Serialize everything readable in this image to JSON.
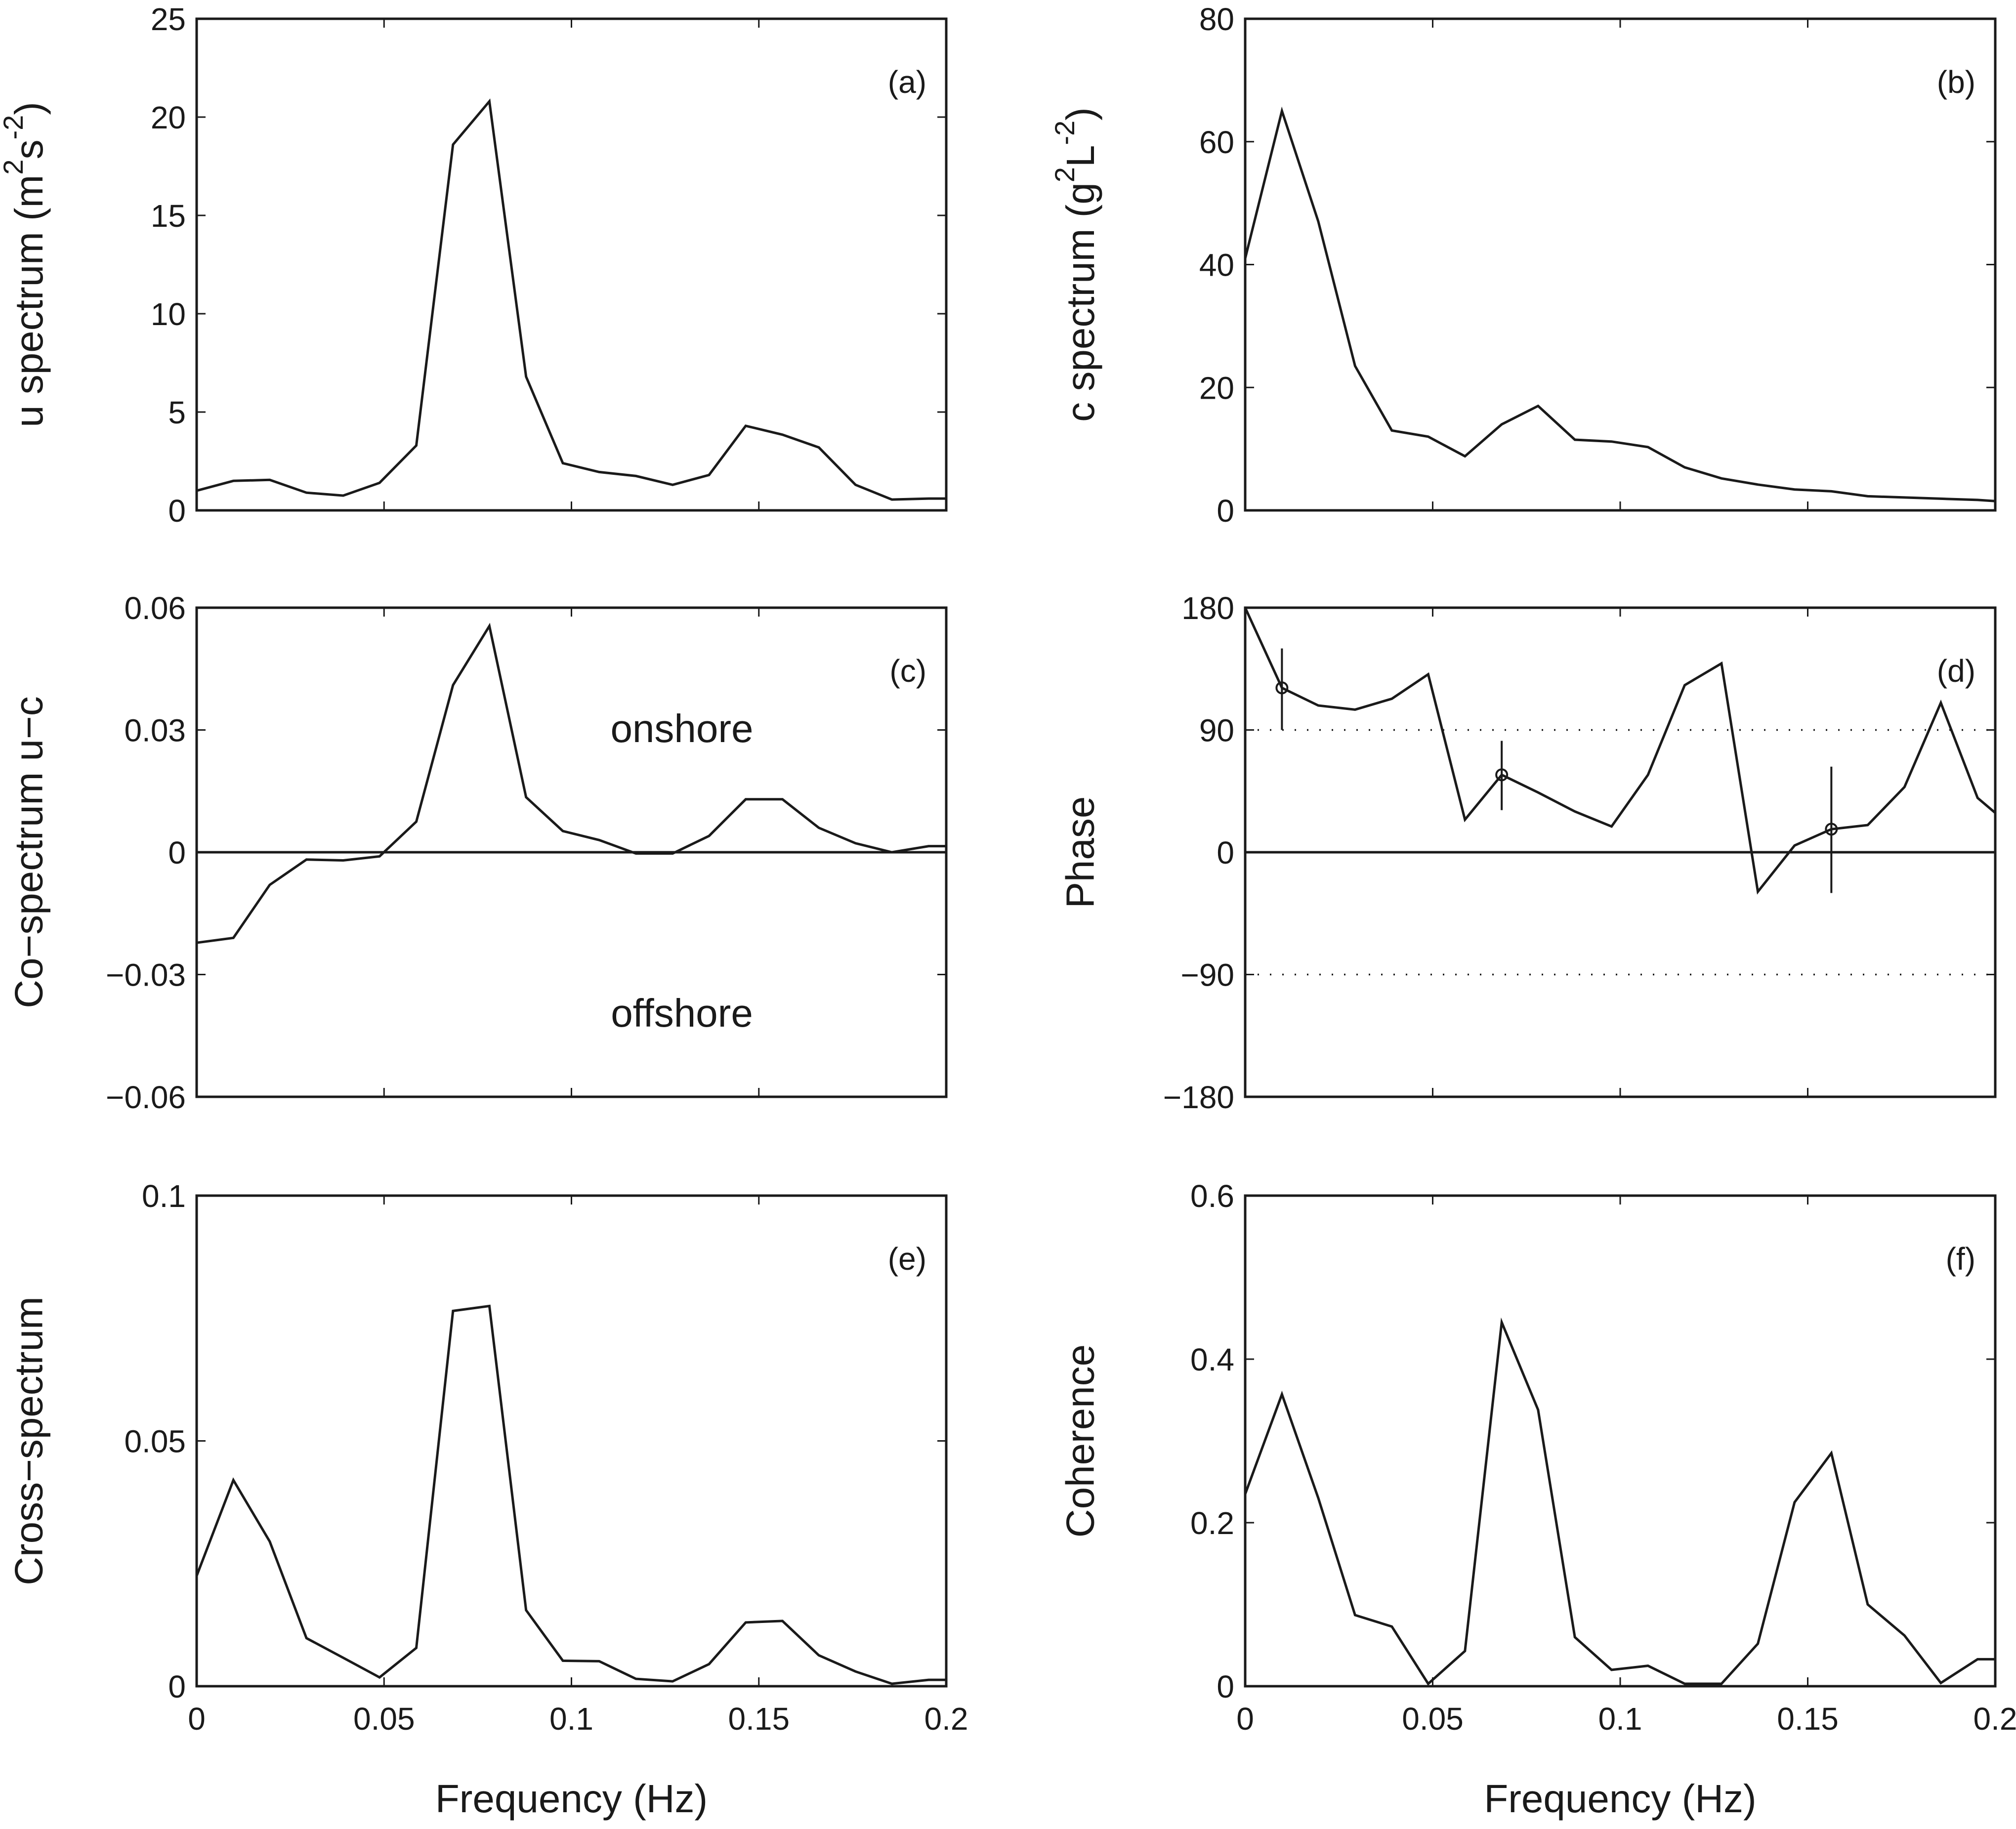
{
  "colors": {
    "line": "#1a1a1a",
    "background": "#ffffff"
  },
  "chart_data": [
    {
      "id": "a",
      "type": "line",
      "panel_label": "(a)",
      "ylabel": "u spectrum (m",
      "ylabel_sup1": "2",
      "ylabel_mid": "s",
      "ylabel_sup2": "-2",
      "ylabel_end": ")",
      "xlabel": "",
      "xlim": [
        0,
        0.2
      ],
      "ylim": [
        0,
        25
      ],
      "xticks": [
        0,
        0.05,
        0.1,
        0.15,
        0.2
      ],
      "xtick_labels": [],
      "yticks": [
        0,
        5,
        10,
        15,
        20,
        25
      ],
      "ytick_labels": [
        "0",
        "5",
        "10",
        "15",
        "20",
        "25"
      ],
      "x": [
        0,
        0.0098,
        0.0195,
        0.0293,
        0.0391,
        0.0488,
        0.0586,
        0.0684,
        0.0781,
        0.0879,
        0.0977,
        0.1074,
        0.1172,
        0.127,
        0.1367,
        0.1465,
        0.1563,
        0.166,
        0.1758,
        0.1855,
        0.1953,
        0.2
      ],
      "y": [
        1.0,
        1.5,
        1.55,
        0.9,
        0.75,
        1.4,
        3.3,
        18.6,
        20.8,
        6.8,
        2.4,
        1.95,
        1.75,
        1.3,
        1.8,
        4.3,
        3.85,
        3.2,
        1.3,
        0.55,
        0.6,
        0.6
      ]
    },
    {
      "id": "b",
      "type": "line",
      "panel_label": "(b)",
      "ylabel": "c spectrum (g",
      "ylabel_sup1": "2",
      "ylabel_mid": "L",
      "ylabel_sup2": "-2",
      "ylabel_end": ")",
      "xlabel": "",
      "xlim": [
        0,
        0.2
      ],
      "ylim": [
        0,
        80
      ],
      "xticks": [
        0,
        0.05,
        0.1,
        0.15,
        0.2
      ],
      "xtick_labels": [],
      "yticks": [
        0,
        20,
        40,
        60,
        80
      ],
      "ytick_labels": [
        "0",
        "20",
        "40",
        "60",
        "80"
      ],
      "x": [
        0,
        0.0098,
        0.0195,
        0.0293,
        0.0391,
        0.0488,
        0.0586,
        0.0684,
        0.0781,
        0.0879,
        0.0977,
        0.1074,
        0.1172,
        0.127,
        0.1367,
        0.1465,
        0.1563,
        0.166,
        0.1758,
        0.1855,
        0.1953,
        0.2
      ],
      "y": [
        41,
        65,
        47,
        23.5,
        13,
        12,
        8.8,
        14,
        17,
        11.5,
        11.2,
        10.3,
        7,
        5.2,
        4.2,
        3.4,
        3.1,
        2.3,
        2.1,
        1.9,
        1.7,
        1.5
      ]
    },
    {
      "id": "c",
      "type": "line",
      "panel_label": "(c)",
      "ylabel": "Co−spectrum u−c",
      "xlabel": "",
      "xlim": [
        0,
        0.2
      ],
      "ylim": [
        -0.06,
        0.06
      ],
      "xticks": [
        0,
        0.05,
        0.1,
        0.15,
        0.2
      ],
      "xtick_labels": [],
      "yticks": [
        -0.06,
        -0.03,
        0,
        0.03,
        0.06
      ],
      "ytick_labels": [
        "−0.06",
        "−0.03",
        "0",
        "0.03",
        "0.06"
      ],
      "zero_line": true,
      "annotations": [
        "onshore",
        "offshore"
      ],
      "x": [
        0,
        0.0098,
        0.0195,
        0.0293,
        0.0391,
        0.0488,
        0.0586,
        0.0684,
        0.0781,
        0.0879,
        0.0977,
        0.1074,
        0.1172,
        0.127,
        0.1367,
        0.1465,
        0.1563,
        0.166,
        0.1758,
        0.1855,
        0.1953,
        0.2
      ],
      "y": [
        -0.0222,
        -0.021,
        -0.008,
        -0.0018,
        -0.002,
        -0.001,
        0.0075,
        0.041,
        0.0555,
        0.0135,
        0.0052,
        0.003,
        -0.0003,
        -0.0003,
        0.004,
        0.013,
        0.013,
        0.006,
        0.0022,
        0.0,
        0.0015,
        0.0015
      ]
    },
    {
      "id": "d",
      "type": "line",
      "panel_label": "(d)",
      "ylabel": "Phase",
      "xlabel": "",
      "xlim": [
        0,
        0.2
      ],
      "ylim": [
        -180,
        180
      ],
      "xticks": [
        0,
        0.05,
        0.1,
        0.15,
        0.2
      ],
      "xtick_labels": [],
      "yticks": [
        -180,
        -90,
        0,
        90,
        180
      ],
      "ytick_labels": [
        "−180",
        "−90",
        "0",
        "90",
        "180"
      ],
      "zero_line": true,
      "dotted_lines": [
        90,
        -90
      ],
      "x": [
        0,
        0.0098,
        0.0195,
        0.0293,
        0.0391,
        0.0488,
        0.0586,
        0.0684,
        0.0781,
        0.0879,
        0.0977,
        0.1074,
        0.1172,
        0.127,
        0.1367,
        0.1465,
        0.1563,
        0.166,
        0.1758,
        0.1855,
        0.1953,
        0.2
      ],
      "y": [
        180,
        121,
        108,
        105,
        113,
        131,
        24,
        57,
        44,
        30,
        19,
        57,
        123,
        139,
        -29,
        5,
        17,
        20,
        48,
        110,
        40,
        29
      ],
      "error_bars": [
        {
          "x": 0.0098,
          "y": 121,
          "lower": 90,
          "upper": 150
        },
        {
          "x": 0.0684,
          "y": 57,
          "lower": 31,
          "upper": 82
        },
        {
          "x": 0.1563,
          "y": 17,
          "lower": -30,
          "upper": 63
        }
      ]
    },
    {
      "id": "e",
      "type": "line",
      "panel_label": "(e)",
      "ylabel": "Cross−spectrum",
      "xlabel": "Frequency (Hz)",
      "xlim": [
        0,
        0.2
      ],
      "ylim": [
        0,
        0.1
      ],
      "xticks": [
        0,
        0.05,
        0.1,
        0.15,
        0.2
      ],
      "xtick_labels": [
        "0",
        "0.05",
        "0.1",
        "0.15",
        "0.2"
      ],
      "yticks": [
        0,
        0.05,
        0.1
      ],
      "ytick_labels": [
        "0",
        "0.05",
        "0.1"
      ],
      "x": [
        0,
        0.0098,
        0.0195,
        0.0293,
        0.0391,
        0.0488,
        0.0586,
        0.0684,
        0.0781,
        0.0879,
        0.0977,
        0.1074,
        0.1172,
        0.127,
        0.1367,
        0.1465,
        0.1563,
        0.166,
        0.1758,
        0.1855,
        0.1953,
        0.2
      ],
      "y": [
        0.0225,
        0.042,
        0.0295,
        0.0098,
        0.0058,
        0.0018,
        0.0078,
        0.0765,
        0.0775,
        0.0155,
        0.0052,
        0.0051,
        0.0015,
        0.001,
        0.0045,
        0.013,
        0.0133,
        0.0063,
        0.003,
        0.0005,
        0.0013,
        0.0013
      ]
    },
    {
      "id": "f",
      "type": "line",
      "panel_label": "(f)",
      "ylabel": "Coherence",
      "xlabel": "Frequency (Hz)",
      "xlim": [
        0,
        0.2
      ],
      "ylim": [
        0,
        0.6
      ],
      "xticks": [
        0,
        0.05,
        0.1,
        0.15,
        0.2
      ],
      "xtick_labels": [
        "0",
        "0.05",
        "0.1",
        "0.15",
        "0.2"
      ],
      "yticks": [
        0,
        0.2,
        0.4,
        0.6
      ],
      "ytick_labels": [
        "0",
        "0.2",
        "0.4",
        "0.6"
      ],
      "x": [
        0,
        0.0098,
        0.0195,
        0.0293,
        0.0391,
        0.0488,
        0.0586,
        0.0684,
        0.0781,
        0.0879,
        0.0977,
        0.1074,
        0.1172,
        0.127,
        0.1367,
        0.1465,
        0.1563,
        0.166,
        0.1758,
        0.1855,
        0.1953,
        0.2
      ],
      "y": [
        0.235,
        0.357,
        0.23,
        0.087,
        0.073,
        0.003,
        0.043,
        0.445,
        0.338,
        0.06,
        0.02,
        0.025,
        0.003,
        0.003,
        0.052,
        0.225,
        0.285,
        0.1,
        0.062,
        0.004,
        0.033,
        0.033
      ]
    }
  ]
}
